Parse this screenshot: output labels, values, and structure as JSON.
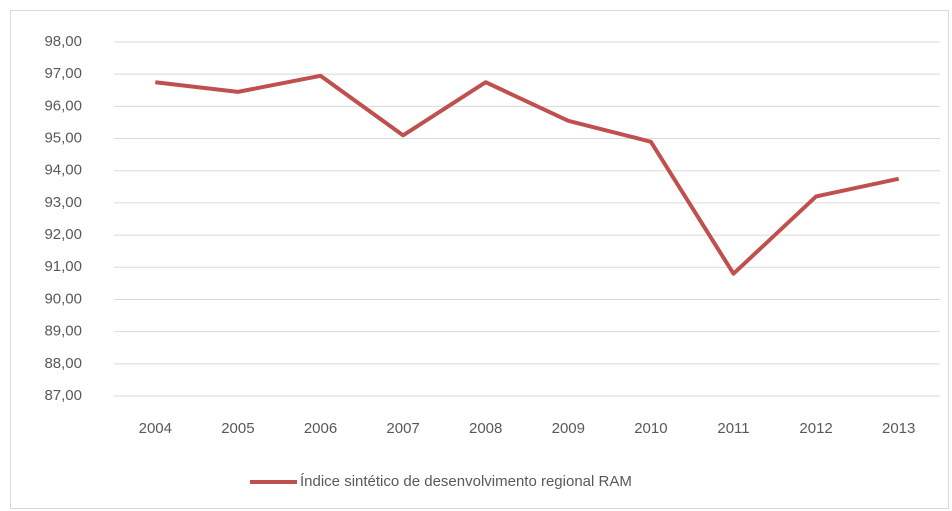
{
  "chart_data": {
    "type": "line",
    "categories": [
      "2004",
      "2005",
      "2006",
      "2007",
      "2008",
      "2009",
      "2010",
      "2011",
      "2012",
      "2013"
    ],
    "series": [
      {
        "name": "Índice sintético de desenvolvimento regional RAM",
        "color": "#c0504d",
        "values": [
          96.75,
          96.45,
          96.95,
          95.1,
          96.75,
          95.55,
          94.9,
          90.8,
          93.2,
          93.75
        ]
      }
    ],
    "ylim": [
      87,
      98
    ],
    "yticks": [
      {
        "value": 87,
        "label": "87,00"
      },
      {
        "value": 88,
        "label": "88,00"
      },
      {
        "value": 89,
        "label": "89,00"
      },
      {
        "value": 90,
        "label": "90,00"
      },
      {
        "value": 91,
        "label": "91,00"
      },
      {
        "value": 92,
        "label": "92,00"
      },
      {
        "value": 93,
        "label": "93,00"
      },
      {
        "value": 94,
        "label": "94,00"
      },
      {
        "value": 95,
        "label": "95,00"
      },
      {
        "value": 96,
        "label": "96,00"
      },
      {
        "value": 97,
        "label": "97,00"
      },
      {
        "value": 98,
        "label": "98,00"
      }
    ],
    "grid": true,
    "legend": "bottom"
  }
}
